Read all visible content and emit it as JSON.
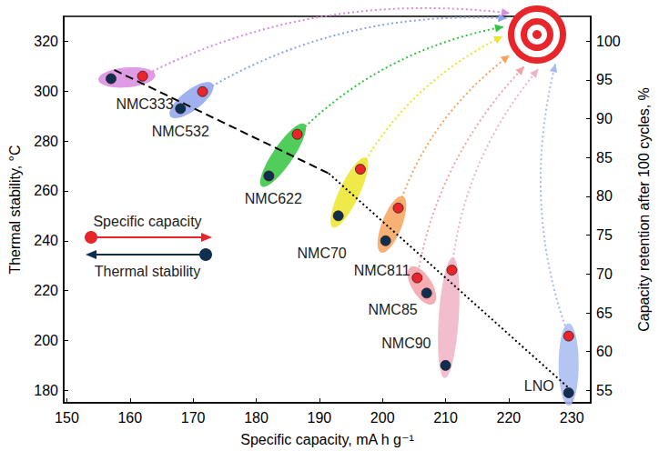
{
  "chart_data": {
    "type": "scatter",
    "xlabel": "Specific capacity, mA h g⁻¹",
    "ylabel": "Thermal stability, °C",
    "y2label": "Capacity retention after 100 cycles, %",
    "xlim": [
      149.5,
      233
    ],
    "xticks": [
      150,
      160,
      170,
      180,
      190,
      200,
      210,
      220,
      230
    ],
    "ylim": [
      175,
      330
    ],
    "yticks": [
      180,
      200,
      220,
      240,
      260,
      280,
      300,
      320
    ],
    "y2lim": [
      53.4,
      103.2
    ],
    "y2ticks": [
      55,
      60,
      65,
      70,
      75,
      80,
      85,
      90,
      95,
      100
    ],
    "grid": false,
    "legend": "left",
    "labels": [
      "NMC333",
      "NMC532",
      "NMC622",
      "NMC70",
      "NMC811",
      "NMC85",
      "NMC90",
      "LNO"
    ],
    "colors": [
      "#d98be0",
      "#8ea3ec",
      "#33c43f",
      "#ece52a",
      "#f7a35c",
      "#f4a0a8",
      "#f0b3c4",
      "#a7bbf2"
    ],
    "series": [
      {
        "name": "Specific capacity",
        "type": "scatter",
        "axis": "y2",
        "color": "#e8252a",
        "marker": "circle",
        "x": [
          162,
          171.5,
          186.5,
          196.5,
          202.5,
          205.5,
          211,
          229.5
        ],
        "values": [
          95.5,
          93.5,
          88,
          83.5,
          78.5,
          69.5,
          70.5,
          62
        ]
      },
      {
        "name": "Thermal stability",
        "type": "scatter",
        "color": "#0f2f50",
        "marker": "circle",
        "x": [
          157,
          168,
          182,
          193,
          200.5,
          207,
          210,
          229.5
        ],
        "values": [
          305,
          293,
          266,
          250,
          240,
          219,
          190,
          179
        ]
      },
      {
        "type": "line",
        "color": "#000000",
        "line_style": "dashed",
        "x": [
          157.5,
          191.5
        ],
        "values": [
          308.5,
          267
        ]
      },
      {
        "type": "line",
        "color": "#000000",
        "line_style": "dotted",
        "x": [
          191.5,
          229.5
        ],
        "values": [
          267,
          181
        ]
      }
    ]
  }
}
